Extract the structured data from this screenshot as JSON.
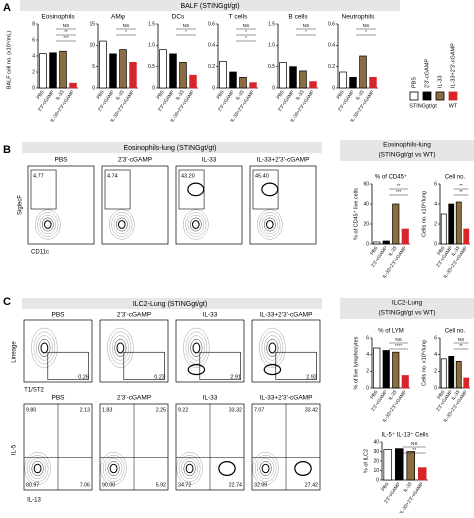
{
  "categories": [
    "PBS",
    "2'3'-cGAMP",
    "IL-33",
    "IL-33+2'3'-cGAMP"
  ],
  "colors": [
    "#ffffff",
    "#000000",
    "#8c6d3f",
    "#d7262b"
  ],
  "panel_a": {
    "letter": "A",
    "title": "BALF (STINGgt/gt)",
    "y_label": "BALF cell no. (x10⁴/mL)",
    "charts": [
      {
        "title": "Eosinophils",
        "ylim": [
          0,
          8
        ],
        "yticks": [
          0,
          2,
          4,
          6,
          8
        ],
        "values": [
          4.3,
          4.4,
          4.6,
          0.6
        ],
        "sig": [
          "NS",
          "**",
          "***"
        ]
      },
      {
        "title": "AMφ",
        "ylim": [
          0,
          15
        ],
        "yticks": [
          0,
          5,
          10,
          15
        ],
        "values": [
          11,
          8,
          9,
          6
        ],
        "sig": [
          "NS",
          "*"
        ]
      },
      {
        "title": "DCs",
        "ylim": [
          0,
          1.5
        ],
        "yticks": [
          0,
          0.5,
          {
            "value": 1,
            "label": "1.0"
          },
          1.5
        ],
        "values": [
          0.9,
          0.8,
          0.6,
          0.3
        ],
        "sig": [
          "NS",
          "*"
        ]
      },
      {
        "title": "T cells",
        "ylim": [
          0,
          0.6
        ],
        "yticks": [
          0,
          0.2,
          0.4,
          0.6
        ],
        "values": [
          0.25,
          0.15,
          0.1,
          0.05
        ],
        "sig": [
          "NS",
          "*",
          "*"
        ]
      },
      {
        "title": "B cells",
        "ylim": [
          0,
          1.5
        ],
        "yticks": [
          0,
          0.5,
          {
            "value": 1,
            "label": "1.0"
          },
          1.5
        ],
        "values": [
          0.6,
          0.5,
          0.4,
          0.15
        ],
        "sig": [
          "NS",
          "*"
        ]
      },
      {
        "title": "Neutrophils",
        "ylim": [
          0,
          0.6
        ],
        "yticks": [
          0,
          0.2,
          0.4,
          0.6
        ],
        "values": [
          0.15,
          0.1,
          0.3,
          0.1
        ],
        "sig": [
          "NS",
          "*"
        ]
      }
    ],
    "legend": {
      "groups": [
        "STINGgt/gt",
        "WT"
      ]
    }
  },
  "panel_b": {
    "letter": "B",
    "title": "Eosinophils-lung (STINGgt/gt)",
    "y_axis": "SiglecF",
    "x_axis": "CD11c",
    "gates": [
      "4.77",
      "4.74",
      "43.20",
      "45.40"
    ],
    "header": [
      "Eosinophils-lung",
      "(STINGgt/gt vs WT)"
    ],
    "charts": [
      {
        "title": "% of CD45⁺",
        "y_label": "% of CD45⁺ live cells",
        "ylim": [
          0,
          60
        ],
        "yticks": [
          0,
          20,
          40,
          60
        ],
        "values": [
          2,
          3,
          40,
          15
        ],
        "sig": [
          "**",
          "***"
        ]
      },
      {
        "title": "Cell no.",
        "y_label": "Cells no. x10⁵/lung",
        "ylim": [
          0,
          6
        ],
        "yticks": [
          0,
          2,
          4,
          6
        ],
        "values": [
          3,
          4,
          4.2,
          1.5
        ],
        "sig": [
          "**",
          "**"
        ]
      }
    ]
  },
  "panel_c": {
    "letter": "C",
    "title": "ILC2-Lung (STINGgt/gt)",
    "row1": {
      "y_axis": "Lineage",
      "x_axis": "T1/ST2",
      "gates": [
        "0.26",
        "0.23",
        "2.91",
        "2.92"
      ]
    },
    "row2": {
      "y_axis": "IL-5",
      "x_axis": "IL-13",
      "quadrants": [
        {
          "tl": "9.80",
          "tr": "2.13",
          "bl": "80.97",
          "br": "7.06"
        },
        {
          "tl": "1.83",
          "tr": "2.25",
          "bl": "90.00",
          "br": "5.92"
        },
        {
          "tl": "9.22",
          "tr": "33.32",
          "bl": "34.72",
          "br": "22.74"
        },
        {
          "tl": "7.07",
          "tr": "33.42",
          "bl": "32.09",
          "br": "27.42"
        }
      ]
    },
    "header": [
      "ILC2-Lung",
      "(STINGgt/gt vs WT)"
    ],
    "charts": [
      {
        "title": "% of LYM",
        "y_label": "% of live lymphocytes",
        "ylim": [
          0,
          6
        ],
        "yticks": [
          0,
          2,
          4,
          6
        ],
        "values": [
          4.8,
          4.5,
          4.3,
          1.5
        ],
        "sig": [
          "NS",
          "****"
        ]
      },
      {
        "title": "Cell no.",
        "y_label": "Cells no. x10⁵/lung",
        "ylim": [
          0,
          6
        ],
        "yticks": [
          0,
          2,
          4,
          6
        ],
        "values": [
          3.5,
          3.8,
          3.2,
          1.2
        ],
        "sig": [
          "NS",
          "**"
        ]
      },
      {
        "title": "IL-5⁺ IL-13⁺ Cells",
        "y_label": "% of ILC2",
        "ylim": [
          0,
          40
        ],
        "yticks": [
          0,
          10,
          20,
          30,
          40
        ],
        "values": [
          32,
          33,
          30,
          13
        ],
        "sig": [
          "NS",
          "**"
        ]
      }
    ]
  }
}
